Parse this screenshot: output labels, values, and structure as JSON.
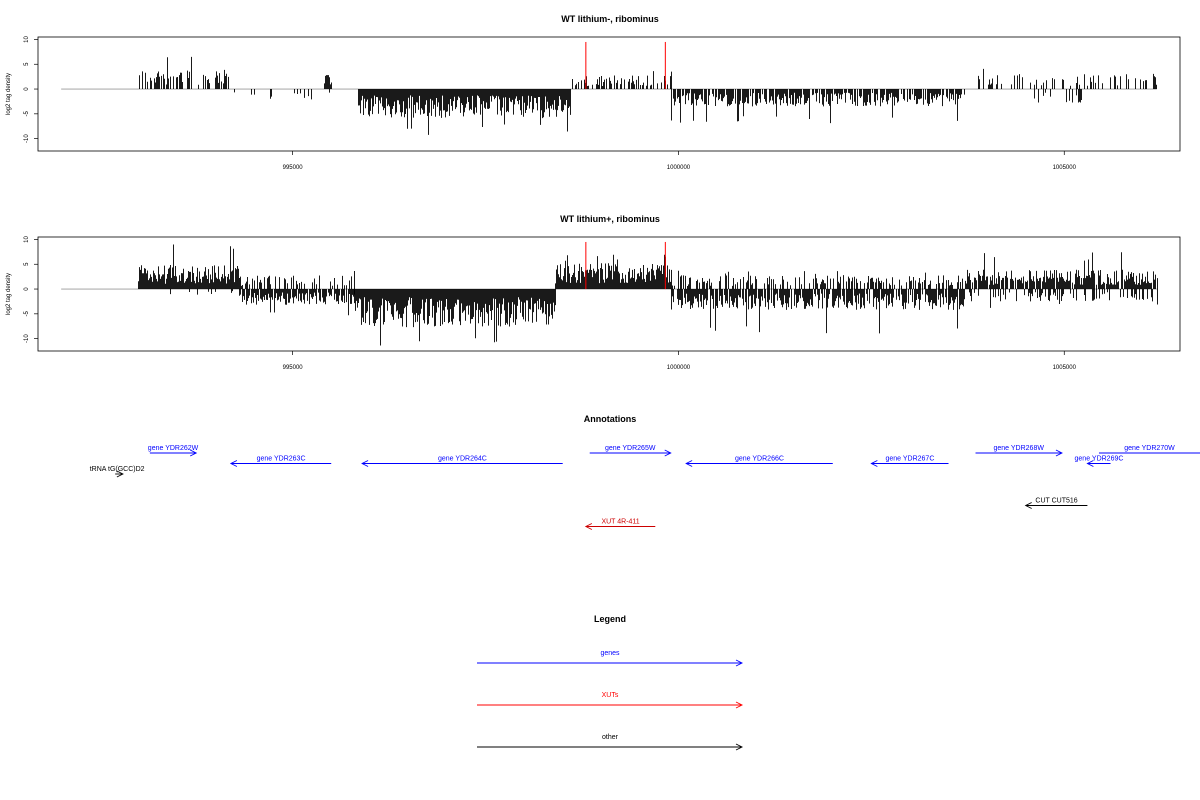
{
  "chart_data": [
    {
      "type": "bar",
      "title": "WT lithium-, ribominus",
      "ylabel": "log2 tag density",
      "xlim": [
        991700,
        1006500
      ],
      "ylim": [
        -12.5,
        10.5
      ],
      "yticks": [
        10,
        5,
        0,
        -5,
        -10
      ],
      "xticks": [
        995000,
        1000000,
        1005000
      ],
      "marker_lines_x": [
        998800,
        999830
      ],
      "marker_color": "#ff0000",
      "regions": [
        {
          "x": [
            993000,
            994200
          ],
          "sign": 1,
          "density": 0.5,
          "mean": 2.8,
          "max": 7.8
        },
        {
          "x": [
            994200,
            995500
          ],
          "sign": -1,
          "density": 0.12,
          "mean": 1.5,
          "max": 3.5
        },
        {
          "x": [
            995400,
            995500
          ],
          "sign": 1,
          "density": 1,
          "mean": 2.8,
          "max": 2.8
        },
        {
          "x": [
            995850,
            998600
          ],
          "sign": -1,
          "density": 1,
          "mean": 4.2,
          "max": 9.5
        },
        {
          "x": [
            998600,
            999900
          ],
          "sign": 1,
          "density": 0.5,
          "mean": 2.0,
          "max": 4.0
        },
        {
          "x": [
            999900,
            1003700
          ],
          "sign": -1,
          "density": 0.8,
          "mean": 2.5,
          "max": 7.0
        },
        {
          "x": [
            1003700,
            1006200
          ],
          "sign": 1,
          "density": 0.3,
          "mean": 2.2,
          "max": 4.5
        },
        {
          "x": [
            1004600,
            1005300
          ],
          "sign": -1,
          "density": 0.2,
          "mean": 2.0,
          "max": 4.3
        }
      ]
    },
    {
      "type": "bar",
      "title": "WT lithium+, ribominus",
      "ylabel": "log2 tag density",
      "xlim": [
        991700,
        1006500
      ],
      "ylim": [
        -12.5,
        10.5
      ],
      "yticks": [
        10,
        5,
        0,
        -5,
        -10
      ],
      "xticks": [
        995000,
        1000000,
        1005000
      ],
      "marker_lines_x": [
        998800,
        999830
      ],
      "marker_color": "#ff0000",
      "regions": [
        {
          "x": [
            993000,
            994300
          ],
          "sign": 1,
          "density": 1,
          "mean": 3.5,
          "max": 9.3
        },
        {
          "x": [
            993400,
            994300
          ],
          "sign": -1,
          "density": 0.1,
          "mean": 1.0,
          "max": 2.0
        },
        {
          "x": [
            994300,
            995800
          ],
          "sign": -1,
          "density": 0.9,
          "mean": 2.3,
          "max": 5.5
        },
        {
          "x": [
            994300,
            995800
          ],
          "sign": 1,
          "density": 0.3,
          "mean": 2.0,
          "max": 4.0
        },
        {
          "x": [
            995800,
            998400
          ],
          "sign": -1,
          "density": 1,
          "mean": 5.5,
          "max": 12.0
        },
        {
          "x": [
            998400,
            999900
          ],
          "sign": 1,
          "density": 1,
          "mean": 3.8,
          "max": 7.5
        },
        {
          "x": [
            999900,
            1003700
          ],
          "sign": -1,
          "density": 0.8,
          "mean": 3.0,
          "max": 9.0
        },
        {
          "x": [
            999900,
            1003700
          ],
          "sign": 1,
          "density": 0.4,
          "mean": 2.0,
          "max": 4.0
        },
        {
          "x": [
            1003700,
            1006200
          ],
          "sign": 1,
          "density": 0.9,
          "mean": 2.8,
          "max": 7.5
        },
        {
          "x": [
            1003700,
            1006200
          ],
          "sign": -1,
          "density": 0.35,
          "mean": 1.8,
          "max": 4.0
        }
      ]
    }
  ],
  "annotations": {
    "title": "Annotations",
    "features": [
      {
        "label": "gene YDR262W",
        "strand": "+",
        "type": "gene",
        "start": 993150,
        "end": 993750,
        "row": 0
      },
      {
        "label": "gene YDR263C",
        "strand": "-",
        "type": "gene",
        "start": 994200,
        "end": 995500,
        "row": 1
      },
      {
        "label": "gene YDR264C",
        "strand": "-",
        "type": "gene",
        "start": 995900,
        "end": 998500,
        "row": 1
      },
      {
        "label": "gene YDR265W",
        "strand": "+",
        "type": "gene",
        "start": 998850,
        "end": 999900,
        "row": 0
      },
      {
        "label": "gene YDR266C",
        "strand": "-",
        "type": "gene",
        "start": 1000100,
        "end": 1002000,
        "row": 1
      },
      {
        "label": "gene YDR267C",
        "strand": "-",
        "type": "gene",
        "start": 1002500,
        "end": 1003500,
        "row": 1
      },
      {
        "label": "gene YDR268W",
        "strand": "+",
        "type": "gene",
        "start": 1003850,
        "end": 1004970,
        "row": 0
      },
      {
        "label": "gene YDR269C",
        "strand": "-",
        "type": "gene",
        "start": 1005300,
        "end": 1005600,
        "row": 1
      },
      {
        "label": "gene YDR270W",
        "strand": "+",
        "type": "gene",
        "start": 1005450,
        "end": 1007300,
        "row": 0
      },
      {
        "label": "tRNA tG(GCC)D2",
        "strand": "+",
        "type": "other",
        "start": 992700,
        "end": 992800,
        "row": 2
      },
      {
        "label": "CUT CUT516",
        "strand": "-",
        "type": "other",
        "start": 1004500,
        "end": 1005300,
        "row": 5
      },
      {
        "label": "XUT 4R-411",
        "strand": "-",
        "type": "xut",
        "start": 998800,
        "end": 999700,
        "row": 7
      }
    ]
  },
  "legend": {
    "title": "Legend",
    "items": [
      {
        "label": "genes",
        "color": "#0000ff"
      },
      {
        "label": "XUTs",
        "color": "#ff0000"
      },
      {
        "label": "other",
        "color": "#000000"
      }
    ]
  },
  "colors": {
    "gene": "#0000ff",
    "xut": "#cc0000",
    "other": "#000000",
    "baseline": "#999999"
  }
}
